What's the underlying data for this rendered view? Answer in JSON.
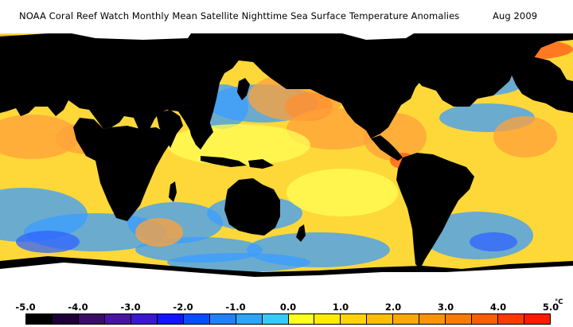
{
  "title": {
    "text": "NOAA Coral Reef Watch Monthly Mean Satellite Nighttime Sea Surface Temperature Anomalies",
    "date": "Aug 2009"
  },
  "legend": {
    "ticks": [
      "-5.0",
      "-4.0",
      "-3.0",
      "-2.0",
      "-1.0",
      "0.0",
      "1.0",
      "2.0",
      "3.0",
      "4.0",
      "5.0"
    ],
    "unit": "°C",
    "range": [
      -5.0,
      5.0
    ],
    "colors": [
      "#000000",
      "#1e0036",
      "#3c0d66",
      "#4a14a3",
      "#3a17d6",
      "#1414ff",
      "#0a4cff",
      "#1e82ff",
      "#2aa6ff",
      "#33ccff",
      "#ffff22",
      "#ffec00",
      "#ffd400",
      "#ffbe00",
      "#ffa800",
      "#ff9400",
      "#ff7a00",
      "#ff5e00",
      "#ff3a00",
      "#ff1a00"
    ]
  },
  "map": {
    "land_color": "#000000",
    "ice_color": "#ffffff",
    "ocean_base_color": "#fed839",
    "anomaly_colors": {
      "cool": "#3a9cff",
      "cooler": "#2f63ff",
      "warm": "#ffa23a",
      "hot": "#ff5a1a",
      "neutral": "#ffff55"
    }
  }
}
